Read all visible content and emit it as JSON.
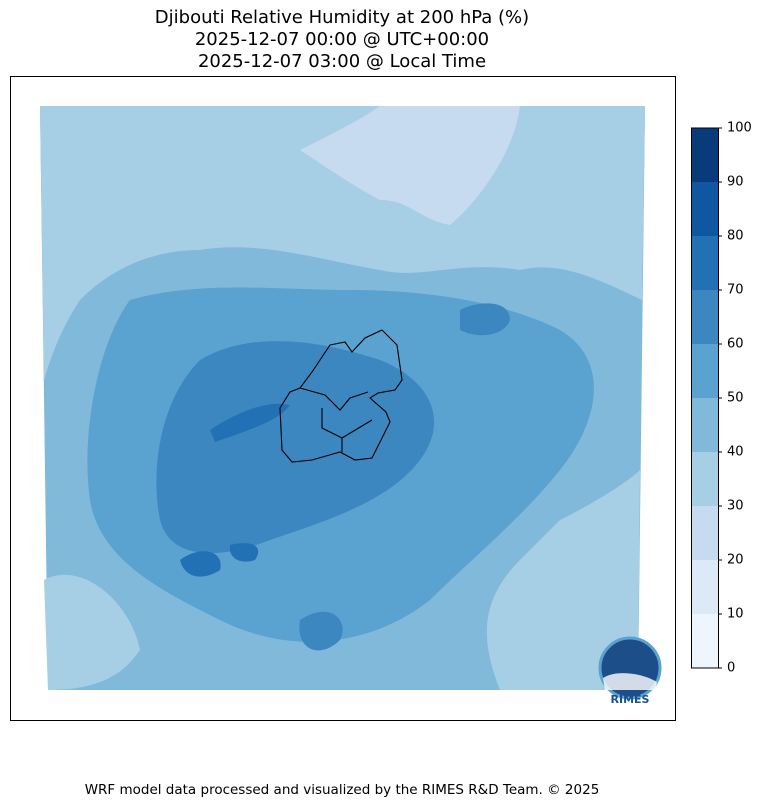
{
  "header": {
    "title_lines": [
      "Djibouti Relative Humidity at 200 hPa (%)",
      "2025-12-07 00:00 @ UTC+00:00",
      "2025-12-07 03:00 @ Local Time"
    ]
  },
  "colorbar": {
    "ticks": [
      0,
      10,
      20,
      30,
      40,
      50,
      60,
      70,
      80,
      90,
      100
    ],
    "colors": [
      "#eef5fc",
      "#dceaf7",
      "#c6dbef",
      "#a6cee4",
      "#80b9da",
      "#5aa2d0",
      "#3d87c0",
      "#2271b5",
      "#0f57a0",
      "#083b7a"
    ]
  },
  "logo": {
    "text": "RIMES"
  },
  "footer": {
    "text": "WRF model data processed and visualized by the RIMES R&D Team. © 2025"
  }
}
